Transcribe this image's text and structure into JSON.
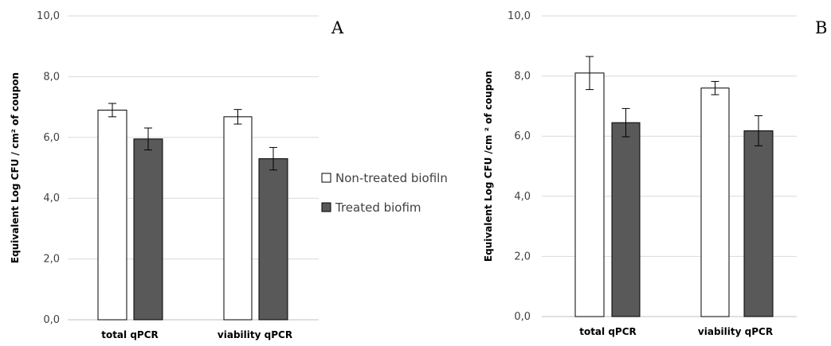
{
  "legend": {
    "items": [
      {
        "label": "Non-treated biofiln",
        "color": "#ffffff"
      },
      {
        "label": "Treated biofim",
        "color": "#595959"
      }
    ]
  },
  "chart_data": [
    {
      "type": "bar",
      "panel_label": "A",
      "ylabel": "Equivalent  Log CFU / cm² of coupon",
      "ylim": [
        0,
        10
      ],
      "yticks": [
        "0,0",
        "2,0",
        "4,0",
        "6,0",
        "8,0",
        "10,0"
      ],
      "grid": true,
      "categories": [
        "total qPCR",
        "viability qPCR"
      ],
      "series": [
        {
          "name": "Non-treated biofiln",
          "color": "#ffffff",
          "values": [
            6.9,
            6.68
          ],
          "errors": [
            0.22,
            0.24
          ]
        },
        {
          "name": "Treated biofim",
          "color": "#595959",
          "values": [
            5.95,
            5.3
          ],
          "errors": [
            0.36,
            0.37
          ]
        }
      ]
    },
    {
      "type": "bar",
      "panel_label": "B",
      "ylabel": "Equivalent Log CFU /cm ² of coupon",
      "ylim": [
        0,
        10
      ],
      "yticks": [
        "0,0",
        "2,0",
        "4,0",
        "6,0",
        "8,0",
        "10,0"
      ],
      "grid": true,
      "categories": [
        "total qPCR",
        "viability qPCR"
      ],
      "series": [
        {
          "name": "Non-treated biofiln",
          "color": "#ffffff",
          "values": [
            8.1,
            7.6
          ],
          "errors": [
            0.55,
            0.22
          ]
        },
        {
          "name": "Treated biofim",
          "color": "#595959",
          "values": [
            6.45,
            6.18
          ],
          "errors": [
            0.47,
            0.5
          ]
        }
      ]
    }
  ]
}
